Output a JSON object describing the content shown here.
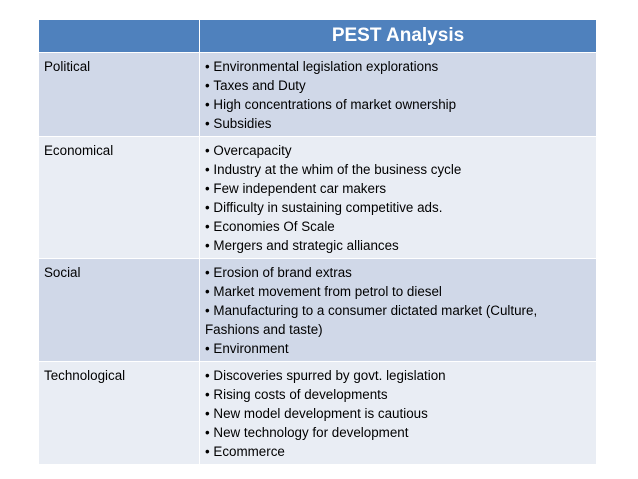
{
  "table": {
    "header": {
      "blank": "",
      "title": "PEST Analysis"
    },
    "rows": [
      {
        "category": "Political",
        "items": [
          "Environmental legislation explorations",
          "Taxes and Duty",
          "High concentrations of market ownership",
          "Subsidies"
        ]
      },
      {
        "category": "Economical",
        "items": [
          "Overcapacity",
          "Industry at the whim of the business cycle",
          "Few independent car makers",
          "Difficulty in sustaining competitive ads.",
          "Economies Of Scale",
          "Mergers and strategic alliances"
        ]
      },
      {
        "category": "Social",
        "items": [
          "Erosion of brand extras",
          "Market movement from petrol to diesel",
          "Manufacturing to a consumer dictated market (Culture, Fashions and taste)",
          "Environment"
        ]
      },
      {
        "category": "Technological",
        "items": [
          "Discoveries spurred by govt. legislation",
          "Rising costs of developments",
          "New model development is cautious",
          "New technology for development",
          "Ecommerce"
        ]
      }
    ]
  },
  "colors": {
    "header": "#4f81bd",
    "row_odd": "#d0d8e8",
    "row_even": "#e9edf4"
  }
}
